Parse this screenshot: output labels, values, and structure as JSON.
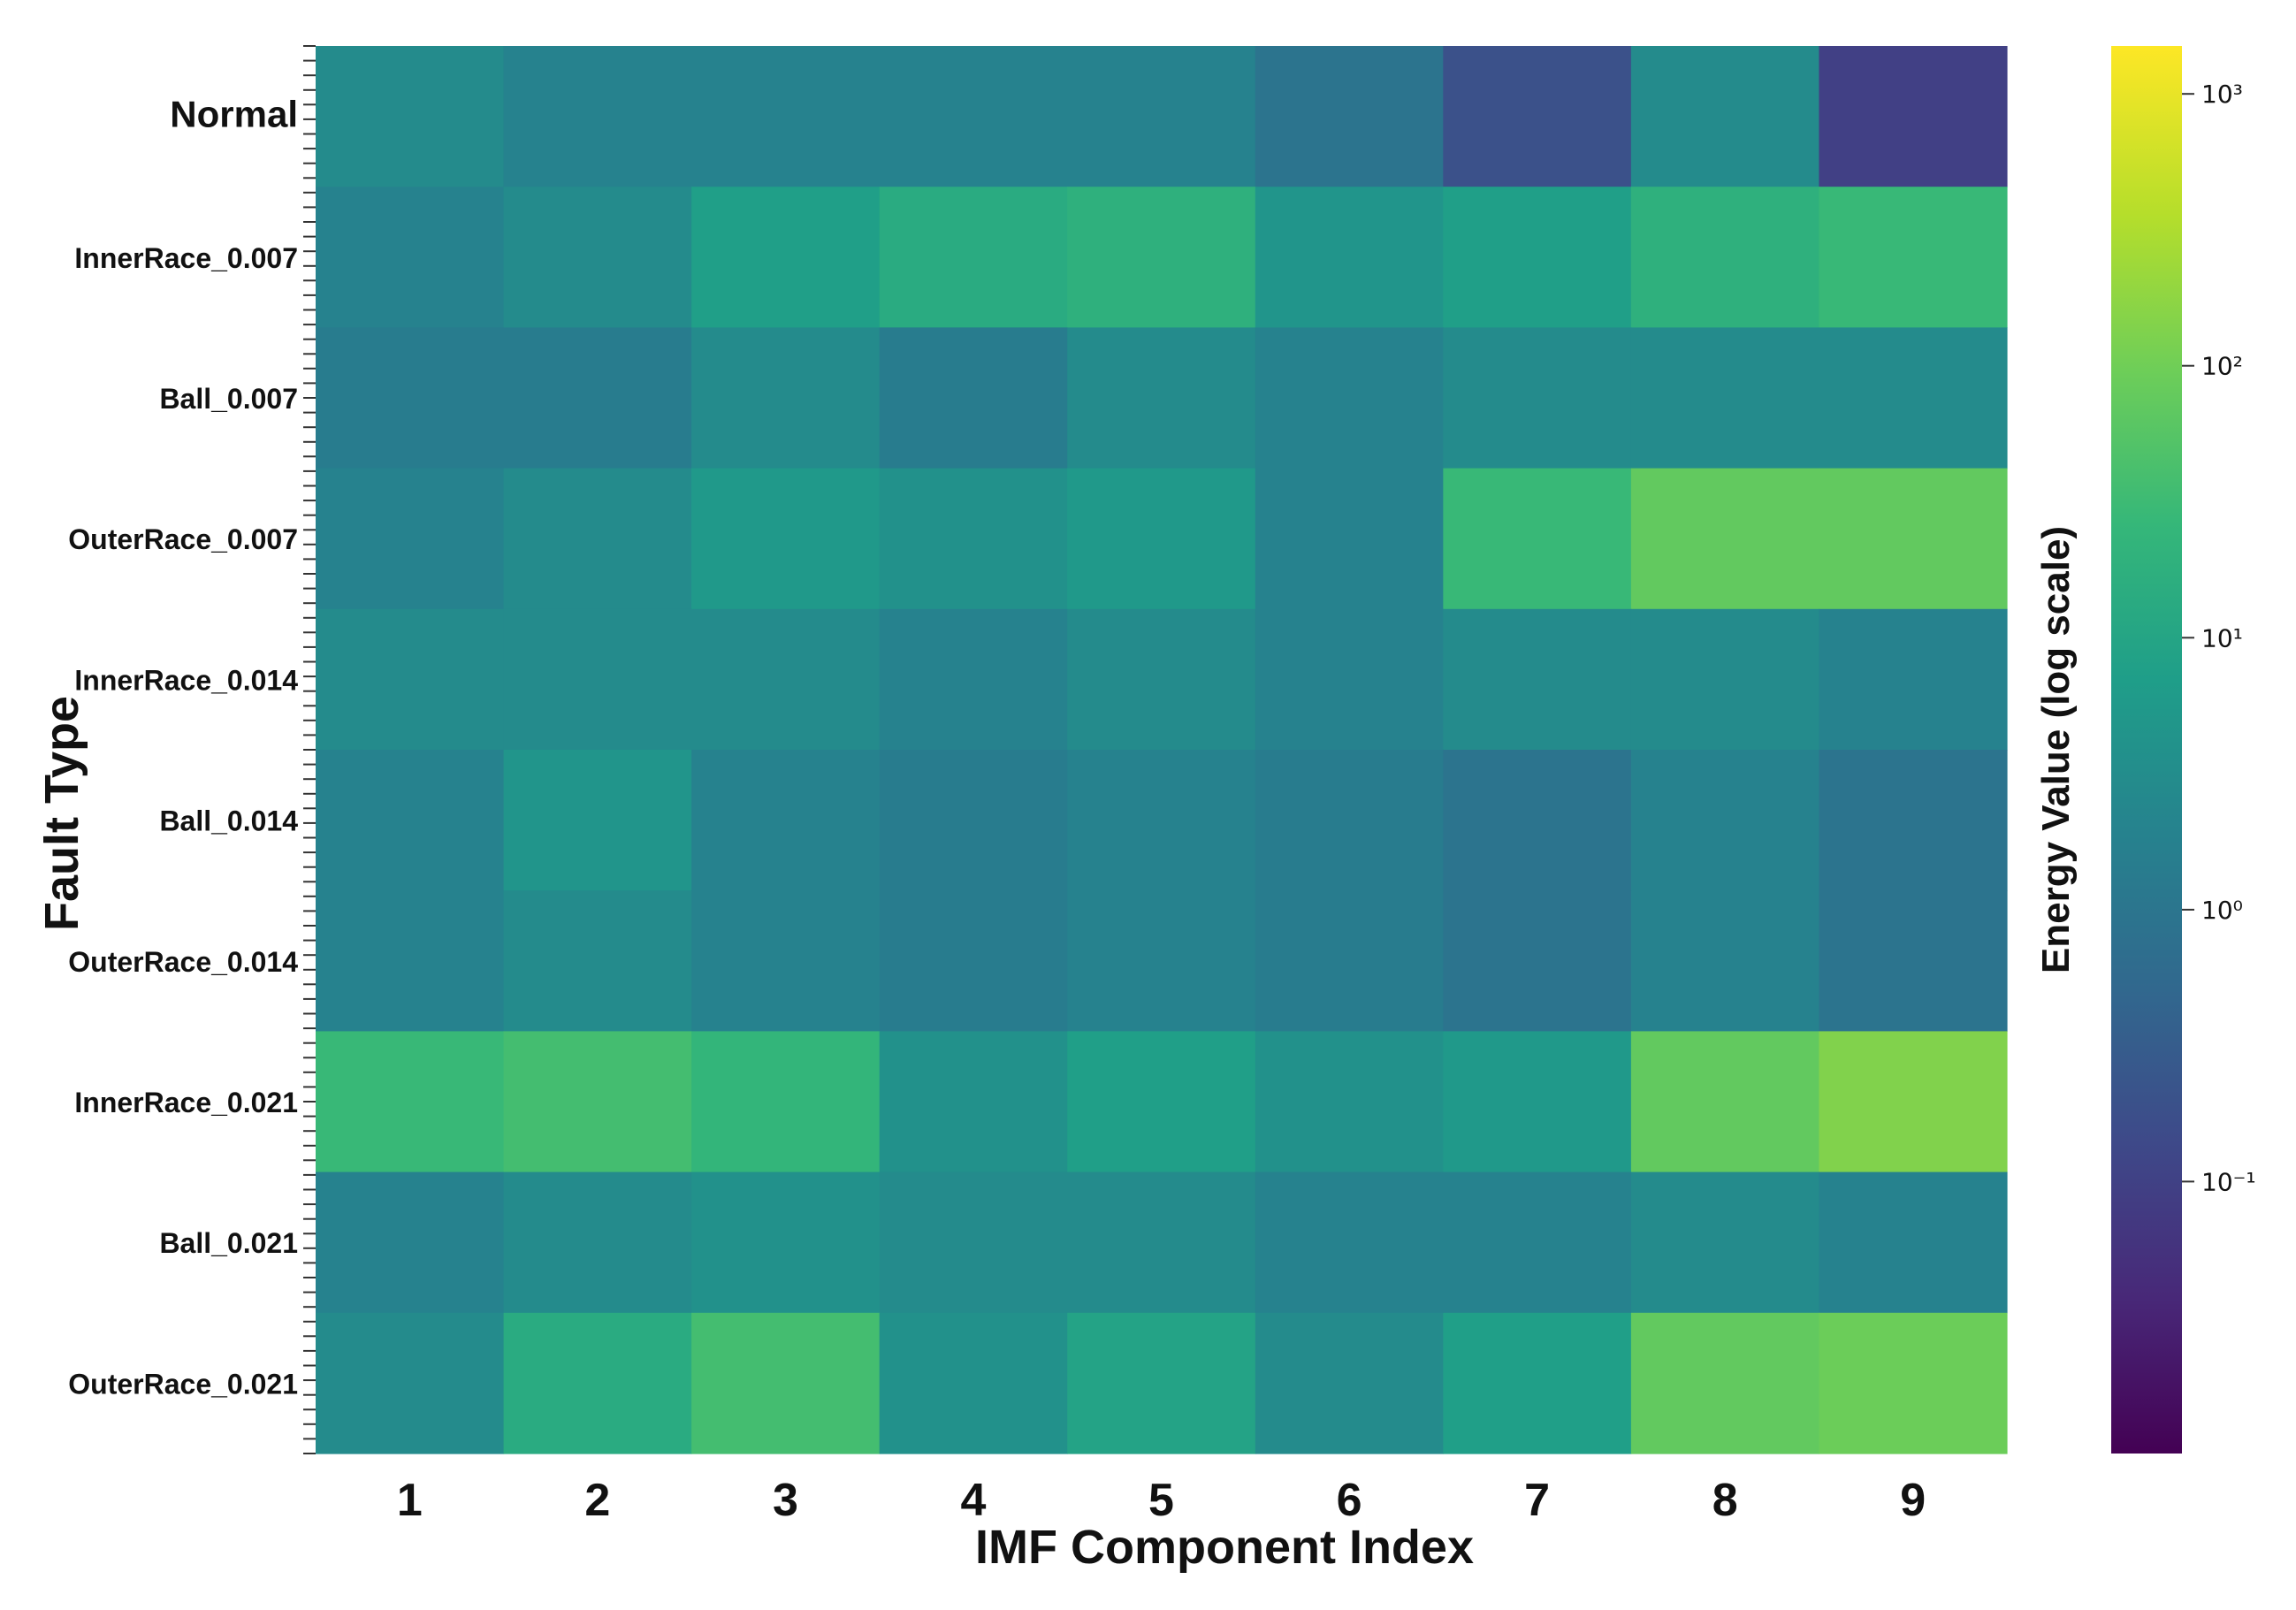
{
  "chart_data": {
    "type": "heatmap",
    "title": "",
    "xlabel": "IMF Component Index",
    "ylabel": "Fault Type",
    "x_categories": [
      "1",
      "2",
      "3",
      "4",
      "5",
      "6",
      "7",
      "8",
      "9"
    ],
    "y_categories": [
      "Normal",
      "InnerRace_0.007",
      "Ball_0.007",
      "OuterRace_0.007",
      "InnerRace_0.014",
      "Ball_0.014",
      "OuterRace_0.014",
      "InnerRace_0.021",
      "Ball_0.021",
      "OuterRace_0.021"
    ],
    "colorbar": {
      "label": "Energy Value (log scale)",
      "scale": "log",
      "colormap": "viridis",
      "range": [
        0.01,
        1500
      ],
      "ticks": [
        0.1,
        1,
        10,
        100,
        1000
      ],
      "tick_labels": [
        "10⁻¹",
        "10⁰",
        "10¹",
        "10²",
        "10³"
      ]
    },
    "values": [
      [
        3,
        2,
        2,
        2,
        2,
        1,
        0.2,
        3,
        0.1
      ],
      [
        2,
        3,
        8,
        15,
        20,
        5,
        8,
        20,
        30
      ],
      [
        1.5,
        1.5,
        3,
        1.5,
        3,
        2,
        3,
        3,
        3
      ],
      [
        2,
        3,
        6,
        4,
        6,
        2,
        30,
        80,
        80
      ],
      [
        3,
        3,
        3,
        2,
        3,
        2,
        3,
        3,
        2
      ],
      [
        2,
        5,
        2,
        1.5,
        2,
        1.5,
        1,
        2,
        1
      ],
      [
        2,
        3,
        2,
        1.5,
        2,
        1.5,
        1,
        2,
        1
      ],
      [
        30,
        40,
        25,
        4,
        8,
        4,
        6,
        80,
        150
      ],
      [
        2,
        3,
        4,
        3,
        3,
        2,
        2,
        3,
        2
      ],
      [
        3,
        15,
        40,
        4,
        10,
        3,
        8,
        80,
        100
      ]
    ],
    "colors": {
      "viridis_stops": [
        "#440154",
        "#482878",
        "#3e4989",
        "#31688e",
        "#26828e",
        "#1f9e89",
        "#35b779",
        "#6ece58",
        "#b5de2b",
        "#fde725"
      ]
    }
  }
}
